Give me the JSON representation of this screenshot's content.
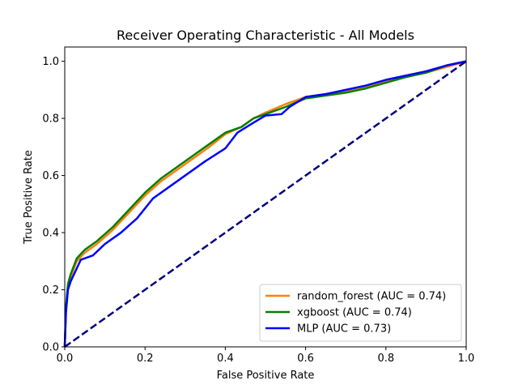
{
  "chart_data": {
    "type": "line",
    "title": "Receiver Operating Characteristic - All Models",
    "xlabel": "False Positive Rate",
    "ylabel": "True Positive Rate",
    "xlim": [
      0,
      1
    ],
    "ylim": [
      0,
      1.05
    ],
    "xticks": [
      "0.0",
      "0.2",
      "0.4",
      "0.6",
      "0.8",
      "1.0"
    ],
    "yticks": [
      "0.0",
      "0.2",
      "0.4",
      "0.6",
      "0.8",
      "1.0"
    ],
    "grid": false,
    "legend_position": "lower-right",
    "series": [
      {
        "name": "random_forest (AUC = 0.74)",
        "color": "#ff7f0e",
        "points": [
          [
            0,
            0
          ],
          [
            0.003,
            0.13
          ],
          [
            0.008,
            0.21
          ],
          [
            0.015,
            0.245
          ],
          [
            0.03,
            0.3
          ],
          [
            0.05,
            0.33
          ],
          [
            0.08,
            0.36
          ],
          [
            0.12,
            0.41
          ],
          [
            0.16,
            0.47
          ],
          [
            0.2,
            0.53
          ],
          [
            0.24,
            0.58
          ],
          [
            0.28,
            0.62
          ],
          [
            0.32,
            0.66
          ],
          [
            0.36,
            0.7
          ],
          [
            0.4,
            0.745
          ],
          [
            0.44,
            0.77
          ],
          [
            0.47,
            0.8
          ],
          [
            0.5,
            0.82
          ],
          [
            0.55,
            0.85
          ],
          [
            0.6,
            0.875
          ],
          [
            0.65,
            0.885
          ],
          [
            0.7,
            0.895
          ],
          [
            0.75,
            0.91
          ],
          [
            0.8,
            0.93
          ],
          [
            0.85,
            0.945
          ],
          [
            0.9,
            0.96
          ],
          [
            0.95,
            0.98
          ],
          [
            1,
            1
          ]
        ]
      },
      {
        "name": "xgboost (AUC = 0.74)",
        "color": "#008000",
        "points": [
          [
            0,
            0
          ],
          [
            0.003,
            0.14
          ],
          [
            0.008,
            0.22
          ],
          [
            0.015,
            0.255
          ],
          [
            0.03,
            0.31
          ],
          [
            0.05,
            0.34
          ],
          [
            0.08,
            0.37
          ],
          [
            0.12,
            0.42
          ],
          [
            0.16,
            0.48
          ],
          [
            0.2,
            0.54
          ],
          [
            0.24,
            0.59
          ],
          [
            0.28,
            0.63
          ],
          [
            0.32,
            0.67
          ],
          [
            0.36,
            0.71
          ],
          [
            0.4,
            0.75
          ],
          [
            0.44,
            0.77
          ],
          [
            0.47,
            0.8
          ],
          [
            0.5,
            0.815
          ],
          [
            0.55,
            0.84
          ],
          [
            0.6,
            0.87
          ],
          [
            0.65,
            0.88
          ],
          [
            0.7,
            0.89
          ],
          [
            0.75,
            0.905
          ],
          [
            0.8,
            0.925
          ],
          [
            0.85,
            0.945
          ],
          [
            0.9,
            0.96
          ],
          [
            0.95,
            0.985
          ],
          [
            1,
            1
          ]
        ]
      },
      {
        "name": "MLP (AUC = 0.73)",
        "color": "#0000ff",
        "points": [
          [
            0,
            0
          ],
          [
            0.003,
            0.12
          ],
          [
            0.008,
            0.2
          ],
          [
            0.015,
            0.23
          ],
          [
            0.03,
            0.275
          ],
          [
            0.04,
            0.305
          ],
          [
            0.07,
            0.32
          ],
          [
            0.1,
            0.36
          ],
          [
            0.14,
            0.4
          ],
          [
            0.18,
            0.45
          ],
          [
            0.22,
            0.52
          ],
          [
            0.26,
            0.56
          ],
          [
            0.3,
            0.6
          ],
          [
            0.35,
            0.65
          ],
          [
            0.4,
            0.695
          ],
          [
            0.43,
            0.75
          ],
          [
            0.47,
            0.785
          ],
          [
            0.5,
            0.81
          ],
          [
            0.54,
            0.815
          ],
          [
            0.56,
            0.84
          ],
          [
            0.6,
            0.875
          ],
          [
            0.65,
            0.885
          ],
          [
            0.7,
            0.9
          ],
          [
            0.75,
            0.915
          ],
          [
            0.8,
            0.935
          ],
          [
            0.85,
            0.95
          ],
          [
            0.9,
            0.965
          ],
          [
            0.95,
            0.985
          ],
          [
            1,
            1
          ]
        ]
      },
      {
        "name": "",
        "color": "#000080",
        "dashed": true,
        "points": [
          [
            0,
            0
          ],
          [
            1,
            1
          ]
        ]
      }
    ]
  }
}
